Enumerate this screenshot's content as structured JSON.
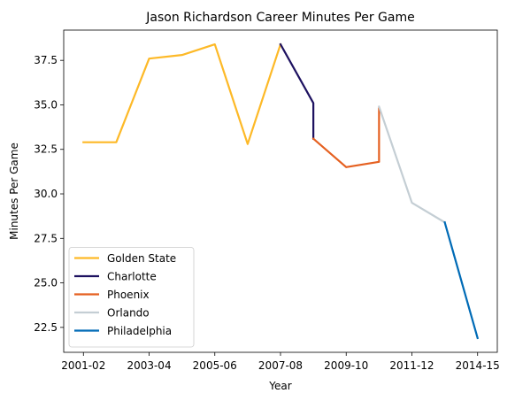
{
  "chart_data": {
    "type": "line",
    "title": "Jason Richardson Career Minutes Per Game",
    "xlabel": "Year",
    "ylabel": "Minutes Per Game",
    "x_tick_labels": [
      "2001-02",
      "2003-04",
      "2005-06",
      "2007-08",
      "2009-10",
      "2011-12",
      "2014-15"
    ],
    "x_tick_positions": [
      0,
      2,
      4,
      6,
      8,
      10,
      12
    ],
    "y_ticks": [
      22.5,
      25.0,
      27.5,
      30.0,
      32.5,
      35.0,
      37.5
    ],
    "y_tick_labels": [
      "22.5",
      "25.0",
      "27.5",
      "30.0",
      "32.5",
      "35.0",
      "37.5"
    ],
    "xlim": [
      -0.6,
      12.6
    ],
    "ylim": [
      21.1,
      39.2
    ],
    "legend_location": "lower-left",
    "series": [
      {
        "name": "Golden State",
        "color": "#FDB927",
        "x": [
          0,
          1,
          2,
          3,
          4,
          5,
          6
        ],
        "y": [
          32.9,
          32.9,
          37.6,
          37.8,
          38.4,
          32.8,
          38.4
        ]
      },
      {
        "name": "Charlotte",
        "color": "#1D1160",
        "x": [
          6,
          7,
          7
        ],
        "y": [
          38.4,
          35.1,
          33.1
        ]
      },
      {
        "name": "Phoenix",
        "color": "#E56020",
        "x": [
          7,
          8,
          9,
          9
        ],
        "y": [
          33.1,
          31.5,
          31.8,
          34.8
        ]
      },
      {
        "name": "Orlando",
        "color": "#C4CED4",
        "x": [
          9,
          10,
          11
        ],
        "y": [
          34.9,
          29.5,
          28.4
        ]
      },
      {
        "name": "Philadelphia",
        "color": "#006BB6",
        "x": [
          11,
          12
        ],
        "y": [
          28.4,
          21.9
        ]
      }
    ]
  }
}
